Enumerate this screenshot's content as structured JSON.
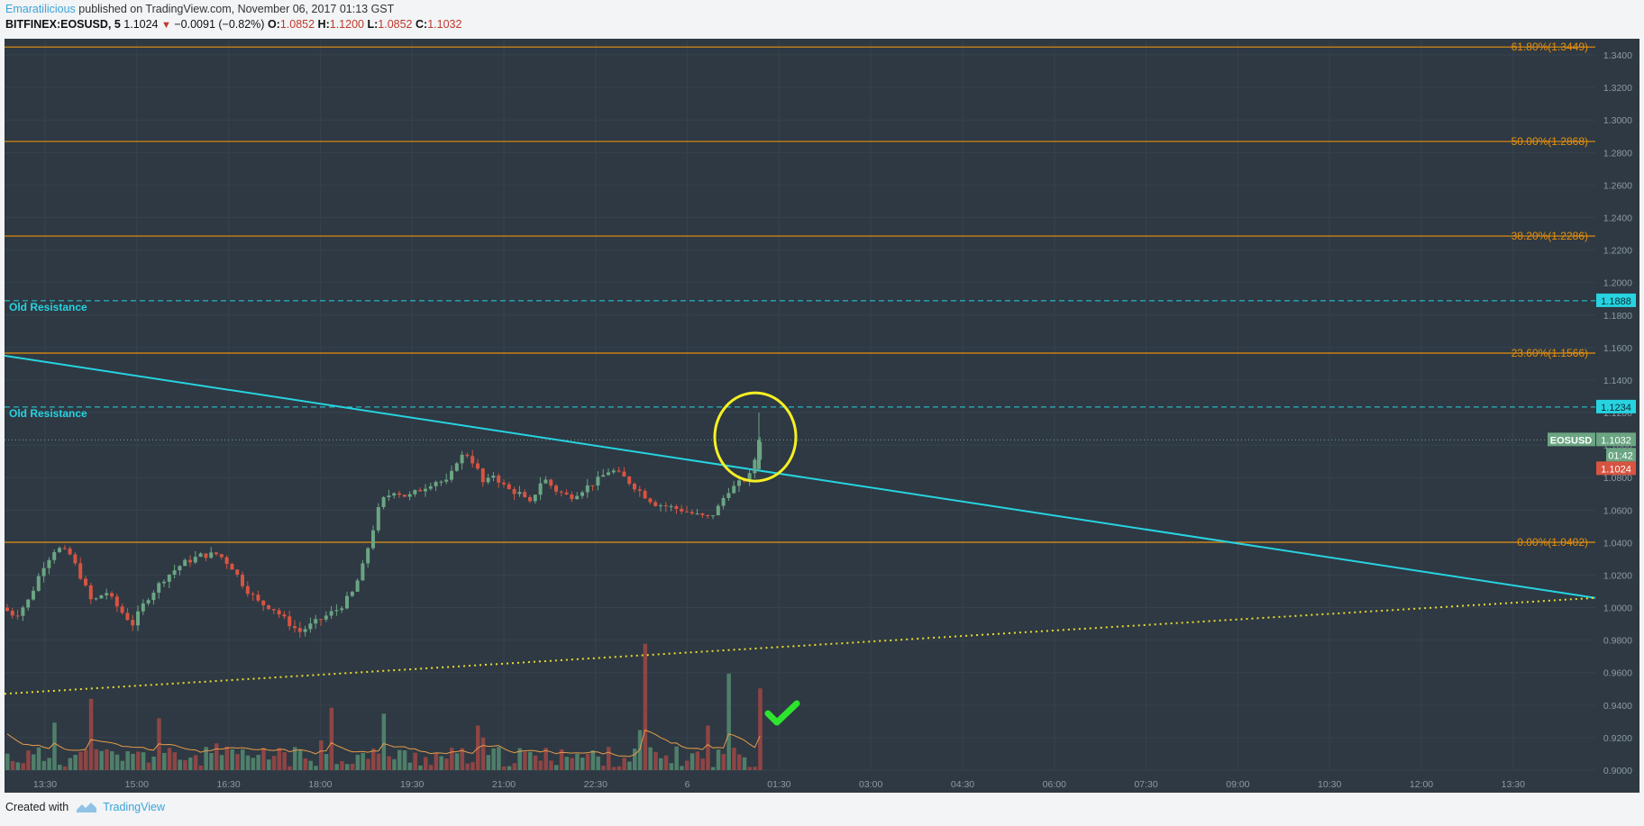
{
  "header": {
    "author": "Emaratilicious",
    "published_text": "published on TradingView.com, November 06, 2017 01:13 GST",
    "symbol": "BITFINEX:EOSUSD, 5",
    "last": "1.1024",
    "change": "−0.0091 (−0.82%)",
    "o_label": "O:",
    "o_value": "1.0852",
    "h_label": "H:",
    "h_value": "1.1200",
    "l_label": "L:",
    "l_value": "1.0852",
    "c_label": "C:",
    "c_value": "1.1032"
  },
  "footer": {
    "created_with": "Created with",
    "brand": "TradingView"
  },
  "colors": {
    "background": "#2e3943",
    "up": "#6ba583",
    "down": "#d75442",
    "fib": "#e8900c",
    "trend": "#27d3e0",
    "support": "#e8dc2a",
    "annotation_circle": "#f6f023",
    "check": "#2ee42e",
    "volume_ma": "#e89b4a"
  },
  "chart_data": {
    "type": "candlestick",
    "price_axis": {
      "ylim": [
        0.9,
        1.35
      ],
      "ticks": [
        "1.3400",
        "1.3200",
        "1.3000",
        "1.2800",
        "1.2600",
        "1.2400",
        "1.2200",
        "1.2000",
        "1.1800",
        "1.1600",
        "1.1400",
        "1.1200",
        "1.1000",
        "1.0800",
        "1.0600",
        "1.0400",
        "1.0200",
        "1.0000",
        "0.9800",
        "0.9600",
        "0.9400",
        "0.9200",
        "0.9000"
      ]
    },
    "time_axis": {
      "ticks": [
        "13:30",
        "15:00",
        "16:30",
        "18:00",
        "19:30",
        "21:00",
        "22:30",
        "6",
        "01:30",
        "03:00",
        "04:30",
        "06:00",
        "07:30",
        "09:00",
        "10:30",
        "12:00",
        "13:30"
      ]
    },
    "fib_levels": [
      {
        "label": "61.80%(1.3449)",
        "value": 1.3449
      },
      {
        "label": "50.00%(1.2868)",
        "value": 1.2868
      },
      {
        "label": "38.20%(1.2286)",
        "value": 1.2286
      },
      {
        "label": "23.60%(1.1566)",
        "value": 1.1566
      },
      {
        "label": "0.00%(1.0402)",
        "value": 1.0402
      }
    ],
    "resistance_levels": [
      {
        "label": "Old Resistance",
        "value": 1.1888,
        "tag": "1.1888"
      },
      {
        "label": "Old Resistance",
        "value": 1.1234,
        "tag": "1.1234"
      }
    ],
    "price_tags": [
      {
        "label": "EOSUSD",
        "value": "1.1032"
      },
      {
        "label": "",
        "value": "01:42"
      },
      {
        "label": "",
        "value": "1.1024"
      }
    ],
    "trendline": {
      "start": [
        0.0,
        1.155
      ],
      "end": [
        1.0,
        1.006
      ]
    },
    "support_line": {
      "start": [
        0.0,
        0.947
      ],
      "end": [
        1.0,
        1.006
      ]
    },
    "candles_summary": "5-minute candles from ~13:00 to ~01:15; range approx 0.975 to 1.120"
  }
}
